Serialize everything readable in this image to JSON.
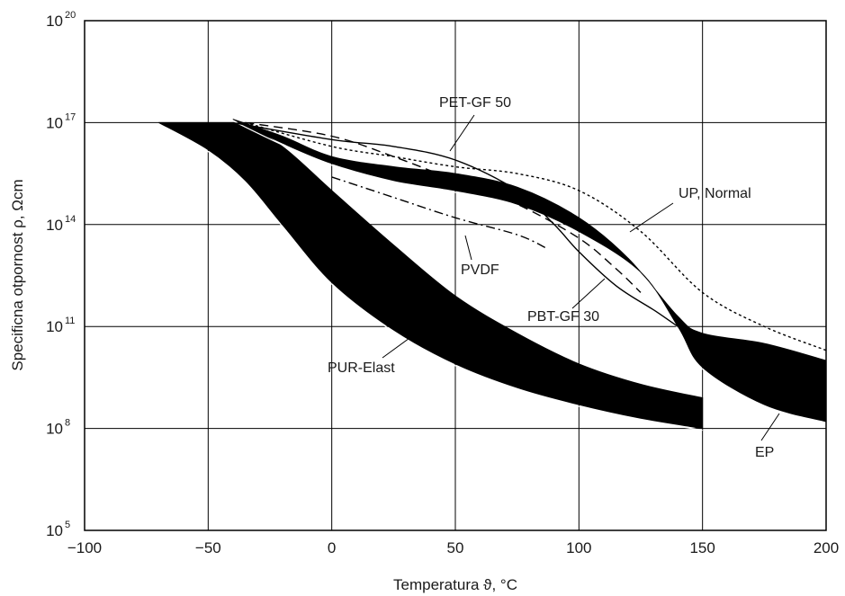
{
  "chart_data": {
    "type": "line",
    "title": "",
    "xlabel": "Temperatura ϑ, °C",
    "ylabel": "Specificna otpornost ρ, Ωcm",
    "xlim": [
      -100,
      200
    ],
    "ylim_exponent": [
      5,
      20
    ],
    "y_scale": "log",
    "grid": true,
    "x_ticks": [
      "−100",
      "−50",
      "0",
      "50",
      "100",
      "150",
      "200"
    ],
    "x_tick_values": [
      -100,
      -50,
      0,
      50,
      100,
      150,
      200
    ],
    "y_ticks": [
      {
        "base": "10",
        "exp": "5",
        "value": 5
      },
      {
        "base": "10",
        "exp": "8",
        "value": 8
      },
      {
        "base": "10",
        "exp": "11",
        "value": 11
      },
      {
        "base": "10",
        "exp": "14",
        "value": 14
      },
      {
        "base": "10",
        "exp": "17",
        "value": 17
      },
      {
        "base": "10",
        "exp": "20",
        "value": 20
      }
    ],
    "bands": [
      {
        "name": "PUR-Elast",
        "upper": [
          [
            -37,
            17.0
          ],
          [
            -20,
            16.3
          ],
          [
            0,
            15.0
          ],
          [
            25,
            13.4
          ],
          [
            50,
            11.9
          ],
          [
            75,
            10.8
          ],
          [
            100,
            9.9
          ],
          [
            125,
            9.3
          ],
          [
            150,
            8.9
          ]
        ],
        "lower": [
          [
            -70,
            17.0
          ],
          [
            -50,
            16.2
          ],
          [
            -35,
            15.3
          ],
          [
            -20,
            14.0
          ],
          [
            0,
            12.3
          ],
          [
            25,
            10.9
          ],
          [
            50,
            9.9
          ],
          [
            75,
            9.2
          ],
          [
            100,
            8.7
          ],
          [
            125,
            8.3
          ],
          [
            150,
            8.0
          ]
        ]
      },
      {
        "name": "EP",
        "upper": [
          [
            -40,
            17.1
          ],
          [
            -20,
            16.6
          ],
          [
            0,
            16.0
          ],
          [
            25,
            15.7
          ],
          [
            50,
            15.5
          ],
          [
            75,
            15.1
          ],
          [
            100,
            14.2
          ],
          [
            120,
            13.0
          ],
          [
            140,
            11.3
          ],
          [
            150,
            10.8
          ],
          [
            175,
            10.5
          ],
          [
            200,
            10.0
          ]
        ],
        "lower": [
          [
            -40,
            17.1
          ],
          [
            -20,
            16.4
          ],
          [
            0,
            15.8
          ],
          [
            25,
            15.3
          ],
          [
            50,
            15.0
          ],
          [
            75,
            14.6
          ],
          [
            100,
            13.8
          ],
          [
            125,
            12.6
          ],
          [
            140,
            11.0
          ],
          [
            150,
            9.8
          ],
          [
            175,
            8.7
          ],
          [
            200,
            8.2
          ]
        ]
      }
    ],
    "series": [
      {
        "name": "PET-GF 50",
        "style": "dashed",
        "points": [
          [
            -35,
            17.0
          ],
          [
            0,
            16.6
          ],
          [
            25,
            16.0
          ],
          [
            50,
            15.3
          ],
          [
            75,
            14.6
          ],
          [
            100,
            13.6
          ],
          [
            115,
            12.7
          ],
          [
            125,
            12.0
          ]
        ]
      },
      {
        "name": "UP, Normal",
        "style": "dotted",
        "points": [
          [
            -35,
            17.0
          ],
          [
            0,
            16.3
          ],
          [
            25,
            16.0
          ],
          [
            50,
            15.7
          ],
          [
            75,
            15.5
          ],
          [
            100,
            15.0
          ],
          [
            125,
            13.8
          ],
          [
            150,
            12.0
          ],
          [
            175,
            11.0
          ],
          [
            200,
            10.3
          ]
        ]
      },
      {
        "name": "PVDF",
        "style": "dashdot",
        "points": [
          [
            0,
            15.4
          ],
          [
            25,
            14.8
          ],
          [
            50,
            14.2
          ],
          [
            75,
            13.7
          ],
          [
            87,
            13.3
          ]
        ]
      },
      {
        "name": "PBT-GF 30",
        "style": "solid",
        "points": [
          [
            -40,
            17.0
          ],
          [
            0,
            16.5
          ],
          [
            25,
            16.3
          ],
          [
            50,
            15.9
          ],
          [
            75,
            15.0
          ],
          [
            90,
            14.0
          ],
          [
            100,
            13.2
          ],
          [
            115,
            12.2
          ],
          [
            130,
            11.5
          ],
          [
            150,
            10.6
          ],
          [
            175,
            10.2
          ]
        ]
      }
    ],
    "labels": [
      "PET-GF 50",
      "UP, Normal",
      "PVDF",
      "PBT-GF 30",
      "PUR-Elast",
      "EP"
    ]
  }
}
